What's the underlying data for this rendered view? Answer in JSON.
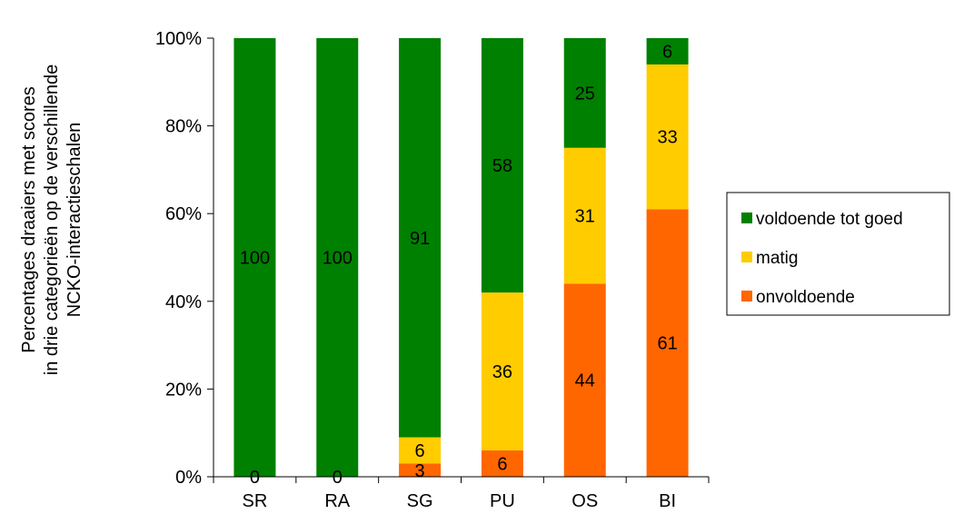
{
  "chart_data": {
    "type": "bar",
    "stacked": "percent",
    "categories": [
      "SR",
      "RA",
      "SG",
      "PU",
      "OS",
      "BI"
    ],
    "series": [
      {
        "name": "onvoldoende",
        "color": "#ff6600",
        "values": [
          0,
          0,
          3,
          6,
          44,
          61
        ]
      },
      {
        "name": "matig",
        "color": "#ffcc00",
        "values": [
          0,
          0,
          6,
          36,
          31,
          33
        ]
      },
      {
        "name": "voldoende tot goed",
        "color": "#008000",
        "values": [
          100,
          100,
          91,
          58,
          25,
          6
        ]
      }
    ],
    "segment_labels": [
      {
        "category": "SR",
        "series": "onvoldoende",
        "text": "0"
      },
      {
        "category": "SR",
        "series": "voldoende tot goed",
        "text": "100"
      },
      {
        "category": "RA",
        "series": "onvoldoende",
        "text": "0"
      },
      {
        "category": "RA",
        "series": "voldoende tot goed",
        "text": "100"
      },
      {
        "category": "SG",
        "series": "onvoldoende",
        "text": "3"
      },
      {
        "category": "SG",
        "series": "matig",
        "text": "6"
      },
      {
        "category": "SG",
        "series": "voldoende tot goed",
        "text": "91"
      },
      {
        "category": "PU",
        "series": "onvoldoende",
        "text": "6"
      },
      {
        "category": "PU",
        "series": "matig",
        "text": "36"
      },
      {
        "category": "PU",
        "series": "voldoende tot goed",
        "text": "58"
      },
      {
        "category": "OS",
        "series": "onvoldoende",
        "text": "44"
      },
      {
        "category": "OS",
        "series": "matig",
        "text": "31"
      },
      {
        "category": "OS",
        "series": "voldoende tot goed",
        "text": "25"
      },
      {
        "category": "BI",
        "series": "onvoldoende",
        "text": "61"
      },
      {
        "category": "BI",
        "series": "matig",
        "text": "33"
      },
      {
        "category": "BI",
        "series": "voldoende tot goed",
        "text": "6"
      }
    ],
    "ylabel_lines": [
      "Percentages draaiers met scores",
      "in drie categorieën op de verschillende",
      "NCKO-interactieschalen"
    ],
    "yticks": [
      "0%",
      "20%",
      "40%",
      "60%",
      "80%",
      "100%"
    ],
    "ylim": [
      0,
      100
    ],
    "legend": {
      "position": "right",
      "items": [
        "voldoende tot goed",
        "matig",
        "onvoldoende"
      ]
    },
    "grid": false
  }
}
